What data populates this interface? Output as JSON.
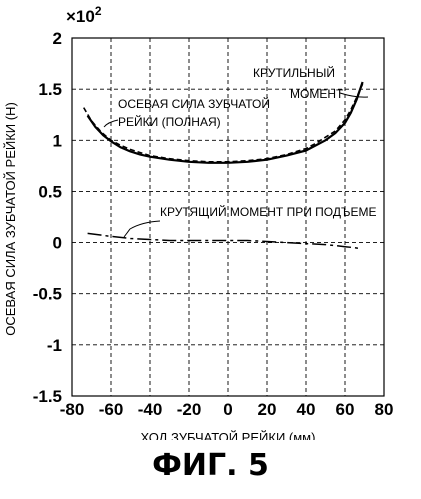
{
  "figure_label": "ФИГ. 5",
  "chart_data": {
    "type": "line",
    "title": "",
    "xlabel": "ХОД ЗУБЧАТОЙ РЕЙКИ (мм)",
    "ylabel": "ОСЕВАЯ СИЛА ЗУБЧАТОЙ РЕЙКИ (Н)",
    "y_multiplier": "×10",
    "y_multiplier_exp": "2",
    "xlim": [
      -80,
      80
    ],
    "ylim": [
      -1.5,
      2
    ],
    "grid": true,
    "x_ticks": [
      "-80",
      "-60",
      "-40",
      "-20",
      "0",
      "20",
      "40",
      "60",
      "80"
    ],
    "x_tick_values": [
      -80,
      -60,
      -40,
      -20,
      0,
      20,
      40,
      60,
      80
    ],
    "y_ticks": [
      "2",
      "1.5",
      "1",
      "0.5",
      "0",
      "-0.5",
      "-1",
      "-1.5"
    ],
    "y_tick_values": [
      2,
      1.5,
      1,
      0.5,
      0,
      -0.5,
      -1,
      -1.5
    ],
    "series": [
      {
        "name": "ОСЕВАЯ СИЛА ЗУБЧАТОЙ РЕЙКИ (ПОЛНАЯ)",
        "style": "dashed",
        "x": [
          -74,
          -70,
          -65,
          -60,
          -55,
          -50,
          -45,
          -40,
          -30,
          -20,
          -10,
          0,
          10,
          20,
          30,
          40,
          45,
          50,
          55,
          60,
          63,
          66,
          69
        ],
        "y": [
          1.32,
          1.19,
          1.08,
          1.0,
          0.95,
          0.91,
          0.88,
          0.85,
          0.82,
          0.8,
          0.79,
          0.79,
          0.8,
          0.82,
          0.86,
          0.92,
          0.97,
          1.03,
          1.09,
          1.2,
          1.3,
          1.42,
          1.55
        ]
      },
      {
        "name": "КРУТИЛЬНЫЙ МОМЕНТ",
        "style": "solid",
        "x": [
          -72,
          -68,
          -64,
          -60,
          -55,
          -50,
          -45,
          -40,
          -30,
          -20,
          -10,
          0,
          10,
          20,
          30,
          40,
          45,
          50,
          55,
          60,
          63,
          66,
          69
        ],
        "y": [
          1.24,
          1.13,
          1.05,
          0.99,
          0.93,
          0.89,
          0.86,
          0.84,
          0.81,
          0.79,
          0.78,
          0.78,
          0.79,
          0.81,
          0.85,
          0.9,
          0.95,
          1.0,
          1.07,
          1.17,
          1.27,
          1.4,
          1.57
        ]
      },
      {
        "name": "КРУТЯЩИЙ МОМЕНТ ПРИ ПОДЪЕМЕ",
        "style": "dash-dot",
        "x": [
          -72,
          -60,
          -50,
          -40,
          -30,
          -20,
          -10,
          0,
          10,
          20,
          30,
          40,
          50,
          55,
          60,
          65,
          68
        ],
        "y": [
          0.09,
          0.06,
          0.04,
          0.03,
          0.02,
          0.02,
          0.02,
          0.02,
          0.02,
          0.01,
          0.0,
          -0.01,
          -0.02,
          -0.03,
          -0.04,
          -0.05,
          -0.06
        ]
      }
    ],
    "annotations": [
      {
        "lines": [
          "ОСЕВАЯ СИЛА ЗУБЧАТОЙ",
          "РЕЙКИ (ПОЛНАЯ)"
        ]
      },
      {
        "lines": [
          "КРУТИЛЬНЫЙ",
          "МОМЕНТ"
        ]
      },
      {
        "lines": [
          "КРУТЯЩИЙ МОМЕНТ ПРИ ПОДЪЕМЕ"
        ]
      }
    ]
  }
}
